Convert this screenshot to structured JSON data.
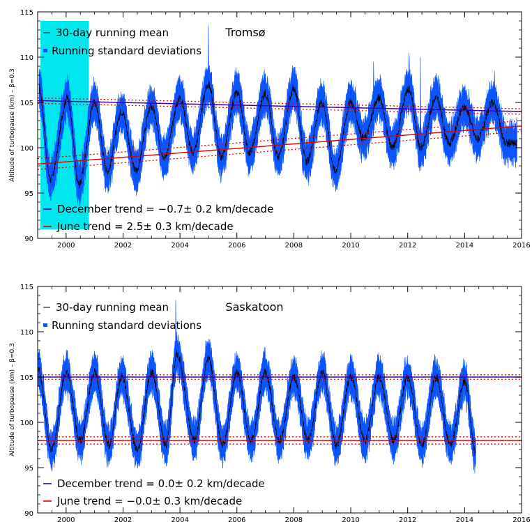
{
  "chart_data": [
    {
      "type": "area",
      "station": "Tromsø",
      "ylabel": "Altitude of turbopause (km) – β=0.3",
      "xlim": [
        1999,
        2016
      ],
      "ylim": [
        90,
        115
      ],
      "x_ticks": [
        2000,
        2002,
        2004,
        2006,
        2008,
        2010,
        2012,
        2014,
        2016
      ],
      "y_ticks": [
        90,
        95,
        100,
        105,
        110,
        115
      ],
      "legend": [
        "30-day running mean",
        "Running standard deviations"
      ],
      "highlight_span": [
        1999.1,
        2000.8
      ],
      "data_start": 1999.05,
      "data_end": 2015.85,
      "peaks": [
        [
          1999.05,
          106.5
        ],
        [
          2000.05,
          105.5
        ],
        [
          2001.0,
          105.0
        ],
        [
          2001.95,
          104.0
        ],
        [
          2003.0,
          104.5
        ],
        [
          2004.0,
          105.5
        ],
        [
          2005.0,
          107.0
        ],
        [
          2006.0,
          106.0
        ],
        [
          2007.0,
          106.0
        ],
        [
          2008.0,
          106.5
        ],
        [
          2009.0,
          105.0
        ],
        [
          2010.0,
          105.0
        ],
        [
          2011.0,
          105.5
        ],
        [
          2012.05,
          106.5
        ],
        [
          2013.0,
          105.5
        ],
        [
          2014.0,
          104.5
        ],
        [
          2015.0,
          105.0
        ]
      ],
      "troughs": [
        [
          1999.45,
          96.5
        ],
        [
          2000.45,
          96.0
        ],
        [
          2001.45,
          97.5
        ],
        [
          2002.45,
          97.5
        ],
        [
          2003.45,
          99.0
        ],
        [
          2004.45,
          99.5
        ],
        [
          2005.45,
          99.0
        ],
        [
          2006.45,
          99.5
        ],
        [
          2007.45,
          99.0
        ],
        [
          2008.45,
          98.5
        ],
        [
          2009.45,
          97.5
        ],
        [
          2010.45,
          101.0
        ],
        [
          2011.45,
          100.0
        ],
        [
          2012.45,
          100.0
        ],
        [
          2013.45,
          100.5
        ],
        [
          2014.45,
          101.0
        ],
        [
          2015.45,
          100.5
        ]
      ],
      "std_dev": 1.8,
      "spikes": [
        [
          2005.0,
          113.5
        ],
        [
          2012.05,
          110.5
        ],
        [
          2012.45,
          110.0
        ],
        [
          2010.8,
          109.5
        ],
        [
          2015.05,
          108.5
        ]
      ],
      "trends": [
        {
          "name": "December trend",
          "label": "December trend = −0.7± 0.2 km/decade",
          "color": "#3a00a8",
          "x": [
            1999,
            2016
          ],
          "y": [
            105.2,
            104.0
          ],
          "band": 0.3
        },
        {
          "name": "June trend",
          "label": "June trend =  2.5± 0.3 km/decade",
          "color": "#e00000",
          "x": [
            1999,
            2016
          ],
          "y": [
            98.2,
            102.4
          ],
          "band": 0.6
        }
      ]
    },
    {
      "type": "area",
      "station": "Saskatoon",
      "ylabel": "Altitude of turbopause (km) – β=0.3",
      "xlim": [
        1999,
        2016
      ],
      "ylim": [
        90,
        115
      ],
      "x_ticks": [
        2000,
        2002,
        2004,
        2006,
        2008,
        2010,
        2012,
        2014,
        2016
      ],
      "y_ticks": [
        90,
        95,
        100,
        105,
        110,
        115
      ],
      "legend": [
        "30-day running mean",
        "Running standard deviations"
      ],
      "data_start": 1999.0,
      "data_end": 2014.4,
      "peaks": [
        [
          1999.0,
          106.0
        ],
        [
          2000.0,
          105.5
        ],
        [
          2001.0,
          105.5
        ],
        [
          2001.95,
          105.0
        ],
        [
          2003.0,
          105.5
        ],
        [
          2003.9,
          107.5
        ],
        [
          2005.0,
          107.0
        ],
        [
          2006.0,
          105.5
        ],
        [
          2007.0,
          105.5
        ],
        [
          2008.0,
          105.0
        ],
        [
          2009.0,
          105.5
        ],
        [
          2010.0,
          105.0
        ],
        [
          2011.0,
          105.0
        ],
        [
          2012.0,
          105.0
        ],
        [
          2013.0,
          105.0
        ],
        [
          2014.0,
          104.5
        ]
      ],
      "troughs": [
        [
          1999.5,
          97.0
        ],
        [
          2000.5,
          98.0
        ],
        [
          2001.5,
          97.5
        ],
        [
          2002.5,
          97.0
        ],
        [
          2003.5,
          97.5
        ],
        [
          2004.5,
          98.0
        ],
        [
          2005.5,
          97.5
        ],
        [
          2006.5,
          98.0
        ],
        [
          2007.5,
          98.0
        ],
        [
          2008.5,
          98.0
        ],
        [
          2009.5,
          97.5
        ],
        [
          2010.5,
          98.0
        ],
        [
          2011.5,
          98.0
        ],
        [
          2012.5,
          97.5
        ],
        [
          2013.5,
          97.5
        ],
        [
          2014.4,
          96.5
        ]
      ],
      "std_dev": 1.7,
      "spikes": [
        [
          2003.85,
          113.5
        ],
        [
          2004.9,
          109.0
        ]
      ],
      "trends": [
        {
          "name": "December trend",
          "label": "December trend =  0.0± 0.2 km/decade",
          "color": "#3a00a8",
          "x": [
            1999,
            2016
          ],
          "y": [
            105.0,
            105.0
          ],
          "band": 0.25
        },
        {
          "name": "June trend",
          "label": "June trend = −0.0± 0.3 km/decade",
          "color": "#e00000",
          "x": [
            1999,
            2016
          ],
          "y": [
            98.0,
            98.0
          ],
          "band": 0.4
        }
      ]
    }
  ]
}
